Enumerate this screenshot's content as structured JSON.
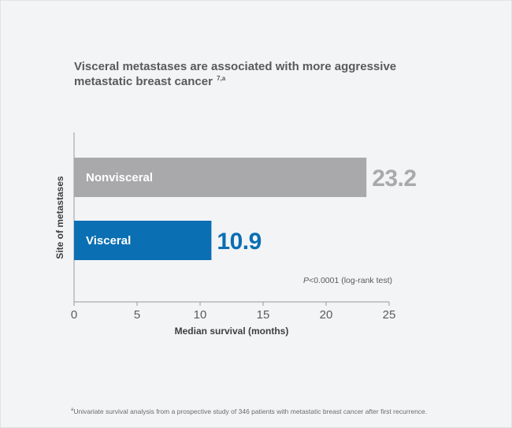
{
  "title": {
    "line1": "Visceral metastases are associated with more aggressive",
    "line2": "metastatic breast cancer",
    "superscript": "7,a"
  },
  "footnote": {
    "marker": "a",
    "text": "Univariate survival analysis from a prospective study of 346 patients with metastatic breast cancer after first recurrence."
  },
  "chart_data": {
    "type": "bar",
    "orientation": "horizontal",
    "categories": [
      "Nonvisceral",
      "Visceral"
    ],
    "values": [
      23.2,
      10.9
    ],
    "value_labels": [
      "23.2",
      "10.9"
    ],
    "colors": [
      "#a9a9ab",
      "#0a6fb3"
    ],
    "value_label_colors": [
      "#a9a9ab",
      "#0a6fb3"
    ],
    "xlabel": "Median survival (months)",
    "ylabel": "Site of metastases",
    "xlim": [
      0,
      25
    ],
    "xticks": [
      0,
      5,
      10,
      15,
      20,
      25
    ],
    "grid": false,
    "annotation": {
      "italic": "P",
      "text": "<0.0001 (log-rank test)"
    }
  }
}
